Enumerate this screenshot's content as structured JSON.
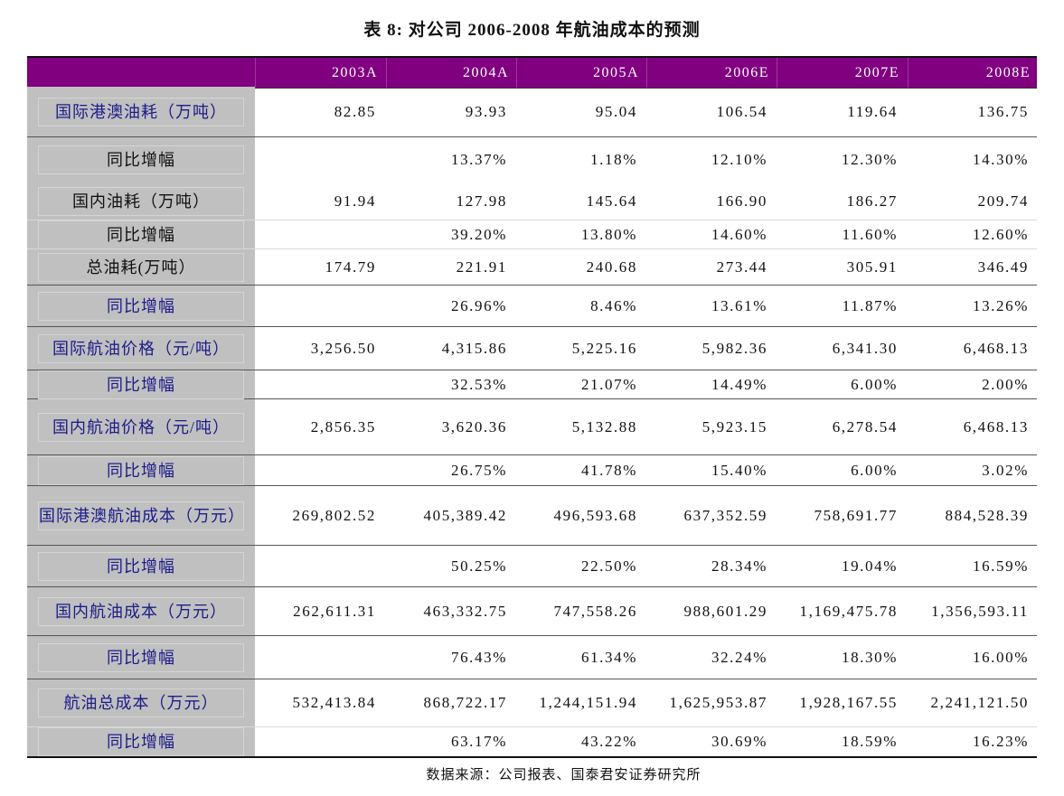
{
  "title": "表 8: 对公司 2006-2008 年航油成本的预测",
  "columns": [
    "2003A",
    "2004A",
    "2005A",
    "2006E",
    "2007E",
    "2008E"
  ],
  "rows": [
    {
      "label": "国际港澳油耗（万吨）",
      "values": [
        "82.85",
        "93.93",
        "95.04",
        "106.54",
        "119.64",
        "136.75"
      ]
    },
    {
      "label": "同比增幅",
      "values": [
        "",
        "13.37%",
        "1.18%",
        "12.10%",
        "12.30%",
        "14.30%"
      ]
    },
    {
      "label": "国内油耗（万吨）",
      "values": [
        "91.94",
        "127.98",
        "145.64",
        "166.90",
        "186.27",
        "209.74"
      ]
    },
    {
      "label": "同比增幅",
      "values": [
        "",
        "39.20%",
        "13.80%",
        "14.60%",
        "11.60%",
        "12.60%"
      ]
    },
    {
      "label": "总油耗(万吨）",
      "values": [
        "174.79",
        "221.91",
        "240.68",
        "273.44",
        "305.91",
        "346.49"
      ]
    },
    {
      "label": "同比增幅",
      "values": [
        "",
        "26.96%",
        "8.46%",
        "13.61%",
        "11.87%",
        "13.26%"
      ]
    },
    {
      "label": "国际航油价格（元/吨）",
      "values": [
        "3,256.50",
        "4,315.86",
        "5,225.16",
        "5,982.36",
        "6,341.30",
        "6,468.13"
      ]
    },
    {
      "label": "同比增幅",
      "values": [
        "",
        "32.53%",
        "21.07%",
        "14.49%",
        "6.00%",
        "2.00%"
      ]
    },
    {
      "label": "国内航油价格（元/吨）",
      "values": [
        "2,856.35",
        "3,620.36",
        "5,132.88",
        "5,923.15",
        "6,278.54",
        "6,468.13"
      ]
    },
    {
      "label": "同比增幅",
      "values": [
        "",
        "26.75%",
        "41.78%",
        "15.40%",
        "6.00%",
        "3.02%"
      ]
    },
    {
      "label": "国际港澳航油成本（万元）",
      "values": [
        "269,802.52",
        "405,389.42",
        "496,593.68",
        "637,352.59",
        "758,691.77",
        "884,528.39"
      ]
    },
    {
      "label": "同比增幅",
      "values": [
        "",
        "50.25%",
        "22.50%",
        "28.34%",
        "19.04%",
        "16.59%"
      ]
    },
    {
      "label": "国内航油成本（万元）",
      "values": [
        "262,611.31",
        "463,332.75",
        "747,558.26",
        "988,601.29",
        "1,169,475.78",
        "1,356,593.11"
      ]
    },
    {
      "label": "同比增幅",
      "values": [
        "",
        "76.43%",
        "61.34%",
        "32.24%",
        "18.30%",
        "16.00%"
      ]
    },
    {
      "label": "航油总成本（万元）",
      "values": [
        "532,413.84",
        "868,722.17",
        "1,244,151.94",
        "1,625,953.87",
        "1,928,167.55",
        "2,241,121.50"
      ]
    },
    {
      "label": "同比增幅",
      "values": [
        "",
        "63.17%",
        "43.22%",
        "30.69%",
        "18.59%",
        "16.23%"
      ]
    }
  ],
  "source": "数据来源：公司报表、国泰君安证券研究所",
  "colors": {
    "header_bg": "#800080",
    "label_bg": "#c0c0c0",
    "label_text": "#1c1c8a"
  }
}
